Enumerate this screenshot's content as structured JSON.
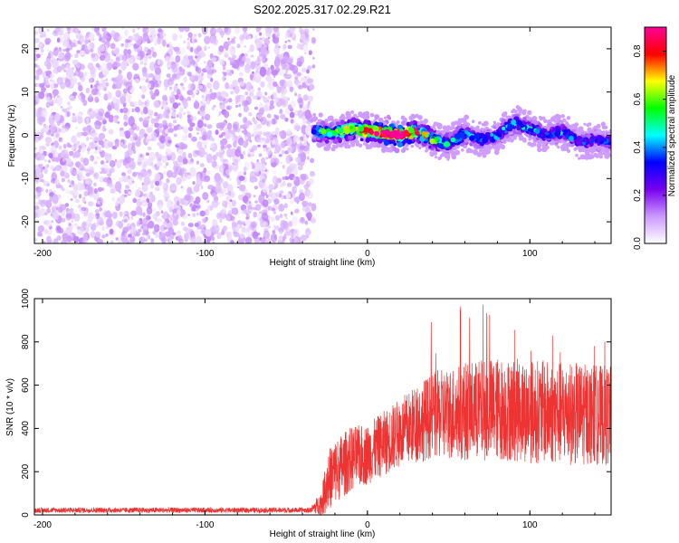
{
  "title": "S202.2025.317.02.29.R21",
  "chart_data": [
    {
      "type": "heatmap",
      "name": "spectrogram",
      "xlabel": "Height of straight line (km)",
      "ylabel": "Frequency (Hz)",
      "xlim": [
        -205,
        150
      ],
      "ylim": [
        -25,
        25
      ],
      "xticks": [
        -200,
        -100,
        0,
        100
      ],
      "xtick_labels": [
        "-200",
        "-100",
        "0",
        "100"
      ],
      "yticks": [
        -20,
        -10,
        0,
        10,
        20
      ],
      "ytick_labels": [
        "-20",
        "-10",
        "0",
        "10",
        "20"
      ],
      "noise_region_x": [
        -205,
        -33
      ],
      "noise_amplitude_typical": 0.08,
      "ridge_points": [
        {
          "x": -33,
          "freq": 1.0,
          "amp": 0.45
        },
        {
          "x": -20,
          "freq": 0.5,
          "amp": 0.5
        },
        {
          "x": -10,
          "freq": 1.5,
          "amp": 0.6
        },
        {
          "x": 0,
          "freq": 1.0,
          "amp": 0.8
        },
        {
          "x": 10,
          "freq": 0.5,
          "amp": 0.9
        },
        {
          "x": 20,
          "freq": 0.0,
          "amp": 0.9
        },
        {
          "x": 30,
          "freq": 1.0,
          "amp": 0.75
        },
        {
          "x": 40,
          "freq": -1.0,
          "amp": 0.5
        },
        {
          "x": 50,
          "freq": -2.0,
          "amp": 0.4
        },
        {
          "x": 60,
          "freq": 0.5,
          "amp": 0.4
        },
        {
          "x": 70,
          "freq": -1.0,
          "amp": 0.35
        },
        {
          "x": 80,
          "freq": 0.0,
          "amp": 0.35
        },
        {
          "x": 90,
          "freq": 3.0,
          "amp": 0.4
        },
        {
          "x": 100,
          "freq": 1.5,
          "amp": 0.4
        },
        {
          "x": 110,
          "freq": 0.0,
          "amp": 0.35
        },
        {
          "x": 120,
          "freq": 1.0,
          "amp": 0.35
        },
        {
          "x": 130,
          "freq": -1.5,
          "amp": 0.3
        },
        {
          "x": 140,
          "freq": -1.0,
          "amp": 0.3
        },
        {
          "x": 150,
          "freq": -1.5,
          "amp": 0.3
        }
      ]
    },
    {
      "type": "colorbar",
      "name": "amplitude-colorbar",
      "label": "Normalized spectral amplitude",
      "range": [
        0,
        0.9
      ],
      "ticks": [
        0,
        0.2,
        0.4,
        0.6,
        0.8
      ],
      "tick_labels": [
        "0.0",
        "0.2",
        "0.4",
        "0.6",
        "0.8"
      ],
      "colormap": [
        "#ffffff",
        "#cc99ff",
        "#7700ee",
        "#0000ff",
        "#00ffff",
        "#00ff00",
        "#ffff00",
        "#ff0000",
        "#ff0099"
      ]
    },
    {
      "type": "line",
      "name": "snr-trace",
      "xlabel": "Height of straight line (km)",
      "ylabel": "SNR (10 * v/v)",
      "xlim": [
        -205,
        150
      ],
      "ylim": [
        0,
        1000
      ],
      "xticks": [
        -200,
        -100,
        0,
        100
      ],
      "xtick_labels": [
        "-200",
        "-100",
        "0",
        "100"
      ],
      "yticks": [
        0,
        200,
        400,
        600,
        800,
        1000
      ],
      "ytick_labels": [
        "0",
        "200",
        "400",
        "600",
        "800",
        "1000"
      ],
      "color": "#ee3333",
      "envelope": [
        {
          "x": -205,
          "mean": 22,
          "spread": 12
        },
        {
          "x": -35,
          "mean": 22,
          "spread": 12
        },
        {
          "x": -28,
          "mean": 60,
          "spread": 60
        },
        {
          "x": -25,
          "mean": 150,
          "spread": 140
        },
        {
          "x": -20,
          "mean": 200,
          "spread": 150
        },
        {
          "x": -10,
          "mean": 260,
          "spread": 150
        },
        {
          "x": 0,
          "mean": 280,
          "spread": 140
        },
        {
          "x": 10,
          "mean": 330,
          "spread": 150
        },
        {
          "x": 20,
          "mean": 380,
          "spread": 160
        },
        {
          "x": 30,
          "mean": 420,
          "spread": 180
        },
        {
          "x": 40,
          "mean": 460,
          "spread": 200
        },
        {
          "x": 60,
          "mean": 480,
          "spread": 230
        },
        {
          "x": 80,
          "mean": 490,
          "spread": 240
        },
        {
          "x": 100,
          "mean": 480,
          "spread": 240
        },
        {
          "x": 120,
          "mean": 470,
          "spread": 240
        },
        {
          "x": 150,
          "mean": 460,
          "spread": 230
        }
      ]
    }
  ]
}
